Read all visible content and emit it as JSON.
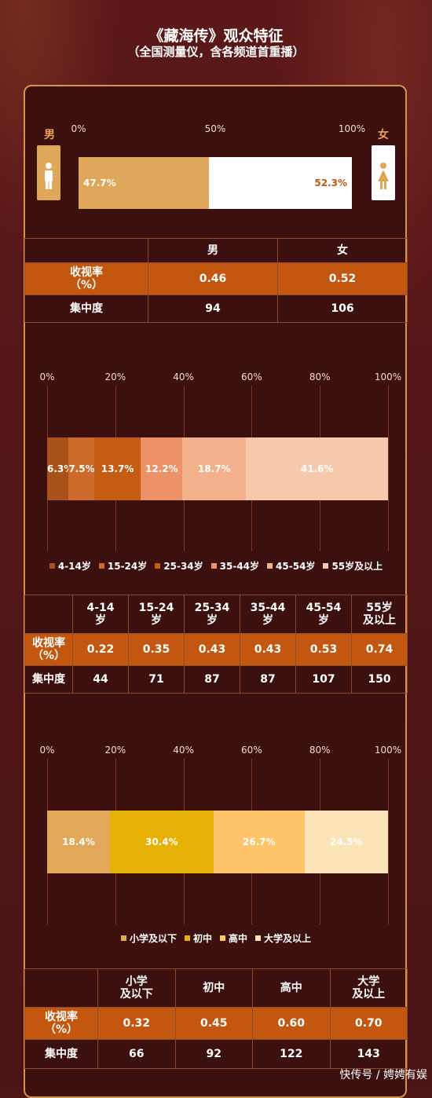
{
  "title": "《藏海传》观众特征",
  "subtitle": "（全国测量仪，含各频道首重播）",
  "watermark": "快传号 / 娉娉有娱",
  "colors": {
    "bg": "#4f1616",
    "border": "#d9924a",
    "rate_row": "#c4570f",
    "male": "#dfa75a",
    "female": "#ffffff"
  },
  "gender": {
    "male_label": "男",
    "female_label": "女",
    "male_icon": "male-person-icon",
    "female_icon": "female-person-icon",
    "table": {
      "header": [
        "",
        "男",
        "女"
      ],
      "rows": [
        {
          "label": "收视率\n（%）",
          "values": [
            "0.46",
            "0.52"
          ]
        },
        {
          "label": "集中度",
          "values": [
            "94",
            "106"
          ]
        }
      ]
    }
  },
  "age": {
    "table": {
      "header": [
        "",
        "4-14\n岁",
        "15-24\n岁",
        "25-34\n岁",
        "35-44\n岁",
        "45-54\n岁",
        "55岁\n及以上"
      ],
      "rows": [
        {
          "label": "收视率\n（%）",
          "values": [
            "0.22",
            "0.35",
            "0.43",
            "0.43",
            "0.53",
            "0.74"
          ]
        },
        {
          "label": "集中度",
          "values": [
            "44",
            "71",
            "87",
            "87",
            "107",
            "150"
          ]
        }
      ]
    }
  },
  "education": {
    "table": {
      "header": [
        "",
        "小学\n及以下",
        "初中",
        "高中",
        "大学\n及以上"
      ],
      "rows": [
        {
          "label": "收视率\n（%）",
          "values": [
            "0.32",
            "0.45",
            "0.60",
            "0.70"
          ]
        },
        {
          "label": "集中度",
          "values": [
            "66",
            "92",
            "122",
            "143"
          ]
        }
      ]
    }
  },
  "chart_data": [
    {
      "type": "bar",
      "stacked_100": true,
      "ticks": [
        "0%",
        "50%",
        "100%"
      ],
      "series": [
        {
          "name": "男",
          "values": [
            47.7
          ],
          "labels": [
            "47.7%"
          ],
          "color": "#dfa75a"
        },
        {
          "name": "女",
          "values": [
            52.3
          ],
          "labels": [
            "52.3%"
          ],
          "color": "#ffffff"
        }
      ]
    },
    {
      "type": "bar",
      "stacked_100": true,
      "ticks": [
        "0%",
        "20%",
        "40%",
        "60%",
        "80%",
        "100%"
      ],
      "grid": true,
      "legend_position": "bottom",
      "series": [
        {
          "name": "4-14岁",
          "values": [
            6.3
          ],
          "labels": [
            "6.3%"
          ],
          "color": "#a8521a"
        },
        {
          "name": "15-24岁",
          "values": [
            7.5
          ],
          "labels": [
            "7.5%"
          ],
          "color": "#cd6a2a"
        },
        {
          "name": "25-34岁",
          "values": [
            13.7
          ],
          "labels": [
            "13.7%"
          ],
          "color": "#c65c12"
        },
        {
          "name": "35-44岁",
          "values": [
            12.2
          ],
          "labels": [
            "12.2%"
          ],
          "color": "#ec9168"
        },
        {
          "name": "45-54岁",
          "values": [
            18.7
          ],
          "labels": [
            "18.7%"
          ],
          "color": "#f3b18b"
        },
        {
          "name": "55岁及以上",
          "values": [
            41.6
          ],
          "labels": [
            "41.6%"
          ],
          "color": "#f7c9ac"
        }
      ]
    },
    {
      "type": "bar",
      "stacked_100": true,
      "ticks": [
        "0%",
        "20%",
        "40%",
        "60%",
        "80%",
        "100%"
      ],
      "grid": true,
      "legend_position": "bottom",
      "series": [
        {
          "name": "小学及以下",
          "values": [
            18.4
          ],
          "labels": [
            "18.4%"
          ],
          "color": "#e1a85a"
        },
        {
          "name": "初中",
          "values": [
            30.4
          ],
          "labels": [
            "30.4%"
          ],
          "color": "#e8b108"
        },
        {
          "name": "高中",
          "values": [
            26.7
          ],
          "labels": [
            "26.7%"
          ],
          "color": "#fec46a"
        },
        {
          "name": "大学及以上",
          "values": [
            24.5
          ],
          "labels": [
            "24.5%"
          ],
          "color": "#fde3b8"
        }
      ]
    }
  ]
}
